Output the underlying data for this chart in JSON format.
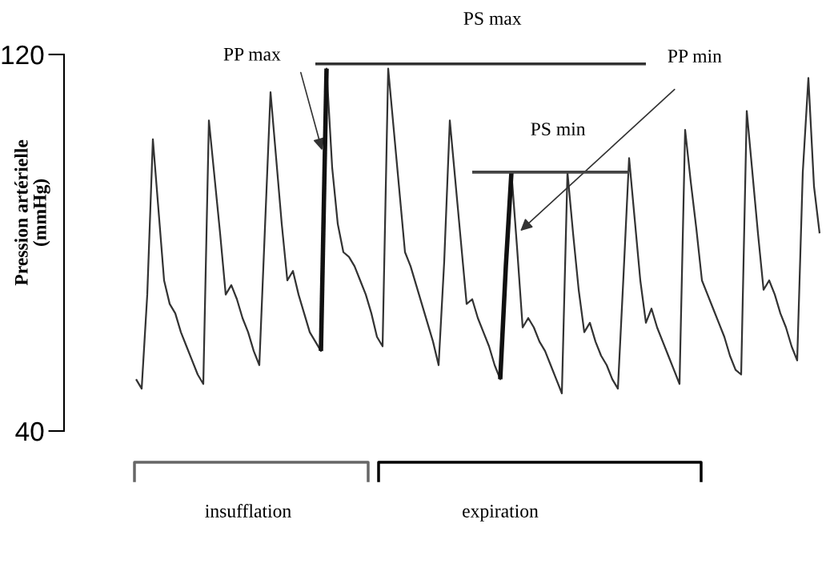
{
  "chart_data": {
    "type": "line",
    "ylabel": "Pression artérielle\n(mmHg)",
    "categories": [
      null,
      null,
      null,
      null,
      null,
      null,
      null,
      null,
      null,
      null,
      null,
      null,
      null,
      null,
      null,
      null,
      null,
      null,
      null,
      null,
      null,
      null,
      null,
      null,
      null,
      null,
      null,
      null,
      null,
      null,
      null,
      null,
      null,
      null,
      null,
      null,
      null,
      null,
      null,
      null,
      null,
      null,
      null,
      null,
      null,
      null,
      null,
      null,
      null,
      null,
      null,
      null,
      null,
      null,
      null,
      null,
      null,
      null,
      null,
      null,
      null,
      null,
      null,
      null,
      null,
      null,
      null,
      null,
      null,
      null,
      null,
      null,
      null,
      null,
      null,
      null,
      null,
      null,
      null,
      null,
      null,
      null,
      null,
      null,
      null,
      null,
      null,
      null,
      null,
      null,
      null,
      null,
      null,
      null,
      null,
      null,
      null,
      null,
      null,
      null,
      null,
      null,
      null,
      null,
      null,
      null,
      null,
      null,
      null,
      null,
      null,
      null,
      null,
      null,
      null,
      null,
      null,
      null,
      null,
      null,
      null,
      null,
      null
    ],
    "series": [
      {
        "color": "#333333",
        "values": [
          51,
          49,
          69,
          102,
          87,
          72,
          67,
          65,
          61,
          58,
          55,
          52,
          50,
          106,
          94,
          82,
          69,
          71,
          68,
          64,
          61,
          57,
          54,
          83,
          112,
          98,
          84,
          72,
          74,
          69,
          65,
          61,
          59,
          57,
          117,
          96,
          84,
          78,
          77,
          75,
          72,
          69,
          65,
          60,
          58,
          117,
          104,
          91,
          78,
          75,
          71,
          67,
          63,
          59,
          54,
          76,
          106,
          93,
          80,
          67,
          68,
          64,
          61,
          58,
          54,
          51,
          75,
          95,
          79,
          62,
          64,
          62,
          59,
          57,
          54,
          51,
          48,
          95,
          82,
          70,
          61,
          63,
          59,
          56,
          54,
          51,
          49,
          73,
          98,
          85,
          72,
          63,
          66,
          62,
          59,
          56,
          53,
          50,
          104,
          93,
          83,
          72,
          69,
          66,
          63,
          60,
          56,
          53,
          52,
          108,
          95,
          82,
          70,
          72,
          69,
          65,
          62,
          58,
          55,
          95,
          115,
          92,
          82
        ]
      },
      {
        "color": "#111111",
        "values": [
          null,
          null,
          null,
          null,
          null,
          null,
          null,
          null,
          null,
          null,
          null,
          null,
          null,
          null,
          null,
          null,
          null,
          null,
          null,
          null,
          null,
          null,
          null,
          null,
          null,
          null,
          null,
          null,
          null,
          null,
          null,
          null,
          null,
          57,
          117,
          null,
          null,
          null,
          null,
          null,
          null,
          null,
          null,
          null,
          null,
          null,
          null,
          null,
          null,
          null,
          null,
          null,
          null,
          null,
          null,
          null,
          null,
          null,
          null,
          null,
          null,
          null,
          null,
          null,
          null,
          null,
          null,
          null,
          null,
          null,
          null,
          null,
          null,
          null,
          null,
          null,
          null,
          null,
          null,
          null,
          null,
          null,
          null,
          null,
          null,
          null,
          null,
          null,
          null,
          null,
          null,
          null,
          null,
          null,
          null,
          null,
          null,
          null,
          null,
          null,
          null,
          null,
          null,
          null,
          null,
          null,
          null,
          null,
          null,
          null,
          null,
          null,
          null,
          null,
          null,
          null,
          null,
          null,
          null,
          null,
          null,
          null,
          null
        ]
      },
      {
        "color": "#333333",
        "values": [
          null,
          null,
          null,
          null,
          null,
          null,
          null,
          null,
          null,
          null,
          null,
          null,
          null,
          null,
          null,
          null,
          null,
          null,
          null,
          null,
          null,
          null,
          null,
          null,
          null,
          null,
          null,
          null,
          null,
          null,
          null,
          null,
          118,
          118,
          118,
          118,
          118,
          118,
          118,
          118,
          118,
          118,
          118,
          118,
          118,
          118,
          118,
          118,
          118,
          118,
          118,
          118,
          118,
          118,
          118,
          118,
          118,
          118,
          118,
          118,
          118,
          118,
          118,
          118,
          118,
          118,
          118,
          118,
          118,
          118,
          118,
          118,
          118,
          118,
          118,
          118,
          118,
          118,
          118,
          118,
          118,
          118,
          118,
          118,
          118,
          118,
          118,
          118,
          118,
          118,
          118,
          118,
          null,
          null,
          null,
          null,
          null,
          null,
          null,
          null,
          null,
          null,
          null,
          null,
          null,
          null,
          null,
          null,
          null,
          null,
          null,
          null,
          null,
          null,
          null,
          null,
          null,
          null,
          null,
          null,
          null,
          null,
          null
        ]
      },
      {
        "color": "#111111",
        "values": [
          null,
          null,
          null,
          null,
          null,
          null,
          null,
          null,
          null,
          null,
          null,
          null,
          null,
          null,
          null,
          null,
          null,
          null,
          null,
          null,
          null,
          null,
          null,
          null,
          null,
          null,
          null,
          null,
          null,
          null,
          null,
          null,
          null,
          null,
          null,
          null,
          null,
          null,
          null,
          null,
          null,
          null,
          null,
          null,
          null,
          null,
          null,
          null,
          null,
          null,
          null,
          null,
          null,
          null,
          null,
          null,
          null,
          null,
          null,
          null,
          null,
          null,
          null,
          null,
          null,
          51,
          75,
          95,
          null,
          null,
          null,
          null,
          null,
          null,
          null,
          null,
          null,
          null,
          null,
          null,
          null,
          null,
          null,
          null,
          null,
          null,
          null,
          null,
          null,
          null,
          null,
          null,
          null,
          null,
          null,
          null,
          null,
          null,
          null,
          null,
          null,
          null,
          null,
          null,
          null,
          null,
          null,
          null,
          null,
          null,
          null,
          null,
          null,
          null,
          null,
          null,
          null,
          null,
          null,
          null,
          null,
          null,
          null
        ]
      },
      {
        "color": "#444444",
        "values": [
          null,
          null,
          null,
          null,
          null,
          null,
          null,
          null,
          null,
          null,
          null,
          null,
          null,
          null,
          null,
          null,
          null,
          null,
          null,
          null,
          null,
          null,
          null,
          null,
          null,
          null,
          null,
          null,
          null,
          null,
          null,
          null,
          null,
          null,
          null,
          null,
          null,
          null,
          null,
          null,
          null,
          null,
          null,
          null,
          null,
          null,
          null,
          null,
          null,
          null,
          null,
          null,
          null,
          null,
          null,
          null,
          null,
          null,
          null,
          null,
          95,
          95,
          95,
          95,
          95,
          95,
          95,
          95,
          95,
          95,
          95,
          95,
          95,
          95,
          95,
          95,
          95,
          95,
          95,
          95,
          95,
          95,
          95,
          95,
          95,
          95,
          95,
          95,
          95,
          null,
          null,
          null,
          null,
          null,
          null,
          null,
          null,
          null,
          null,
          null,
          null,
          null,
          null,
          null,
          null,
          null,
          null,
          null,
          null,
          null,
          null,
          null,
          null,
          null,
          null,
          null,
          null,
          null,
          null,
          null,
          null,
          null,
          null
        ]
      }
    ],
    "ylim": [
      40,
      120
    ],
    "yticks": [
      40,
      120
    ],
    "annotations": [
      "PS max",
      "PP max",
      "PP min",
      "PS min",
      "insufflation",
      "expiration"
    ]
  }
}
